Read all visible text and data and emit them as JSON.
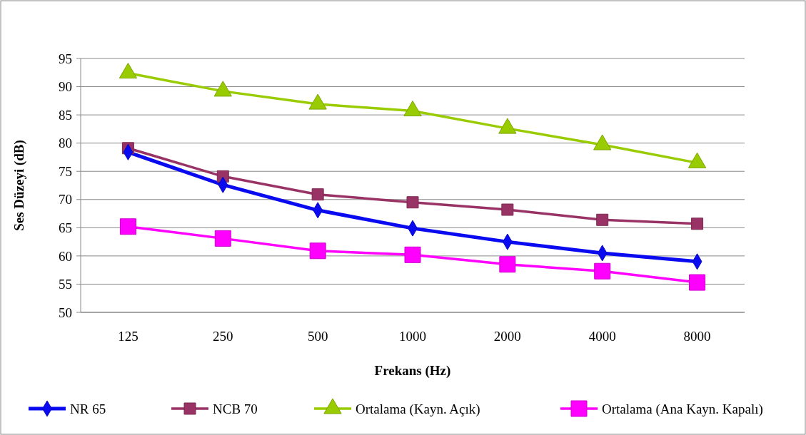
{
  "chart_data": {
    "type": "line",
    "xlabel": "Frekans (Hz)",
    "ylabel": "Ses Düzeyi (dB)",
    "categories": [
      "125",
      "250",
      "500",
      "1000",
      "2000",
      "4000",
      "8000"
    ],
    "series": [
      {
        "name": "NR 65",
        "color": "#0a0af0",
        "marker": "diamond",
        "values": [
          78.4,
          72.6,
          68.1,
          64.9,
          62.5,
          60.5,
          59.0
        ]
      },
      {
        "name": "NCB 70",
        "color": "#993366",
        "marker": "square",
        "values": [
          79.1,
          74.1,
          70.9,
          69.5,
          68.2,
          66.4,
          65.7
        ]
      },
      {
        "name": "Ortalama (Kayn. Açık)",
        "color": "#99cc00",
        "marker": "triangle",
        "values": [
          92.4,
          89.2,
          86.9,
          85.7,
          82.6,
          79.7,
          76.5
        ]
      },
      {
        "name": "Ortalama (Ana Kayn. Kapalı)",
        "color": "#ff00ff",
        "marker": "square",
        "values": [
          65.2,
          63.1,
          60.9,
          60.2,
          58.5,
          57.3,
          55.3
        ]
      }
    ],
    "ylim": [
      50,
      95
    ],
    "yticks": [
      50,
      55,
      60,
      65,
      70,
      75,
      80,
      85,
      90,
      95
    ],
    "grid": "y",
    "legend": "bottom",
    "line_style": "solid"
  }
}
